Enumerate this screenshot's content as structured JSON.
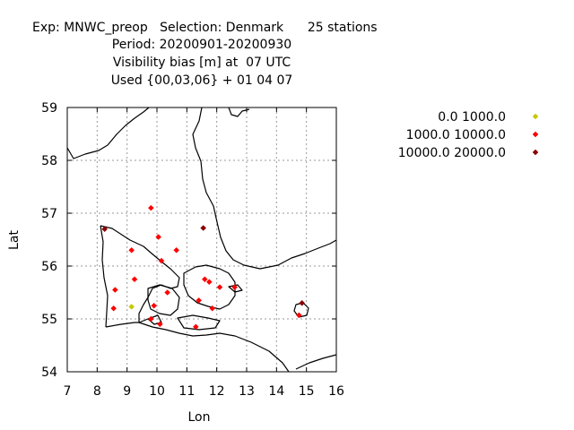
{
  "chart_data": {
    "type": "scatter",
    "title_lines": [
      "Exp: MNWC_preop   Selection: Denmark      25 stations",
      "Period: 20200901-20200930",
      "Visibility bias [m] at  07 UTC",
      "Used {00,03,06} + 01 04 07"
    ],
    "xlabel": "Lon",
    "ylabel": "Lat",
    "xlim": [
      7,
      16
    ],
    "ylim": [
      54,
      59
    ],
    "xticks": [
      "7",
      "8",
      "9",
      "10",
      "11",
      "12",
      "13",
      "14",
      "15",
      "16"
    ],
    "yticks": [
      "54",
      "55",
      "56",
      "57",
      "58",
      "59"
    ],
    "grid": true,
    "legend_position": "right",
    "series": [
      {
        "name": "0.0 1000.0",
        "color": "#c8c800",
        "points": [
          [
            9.15,
            55.23
          ]
        ]
      },
      {
        "name": "1000.0 10000.0",
        "color": "#ff0000",
        "points": [
          [
            9.8,
            57.1
          ],
          [
            9.15,
            56.3
          ],
          [
            10.05,
            56.55
          ],
          [
            10.65,
            56.3
          ],
          [
            10.15,
            56.1
          ],
          [
            9.25,
            55.75
          ],
          [
            8.6,
            55.55
          ],
          [
            10.35,
            55.5
          ],
          [
            8.55,
            55.2
          ],
          [
            9.9,
            55.25
          ],
          [
            11.6,
            55.75
          ],
          [
            11.75,
            55.7
          ],
          [
            12.1,
            55.6
          ],
          [
            12.6,
            55.6
          ],
          [
            11.4,
            55.35
          ],
          [
            11.85,
            55.2
          ],
          [
            9.8,
            55.0
          ],
          [
            10.1,
            54.9
          ],
          [
            11.3,
            54.85
          ],
          [
            14.75,
            55.07
          ]
        ]
      },
      {
        "name": "10000.0 20000.0",
        "color": "#8b0000",
        "points": [
          [
            8.25,
            56.7
          ],
          [
            11.55,
            56.72
          ],
          [
            14.85,
            55.3
          ]
        ]
      }
    ]
  }
}
